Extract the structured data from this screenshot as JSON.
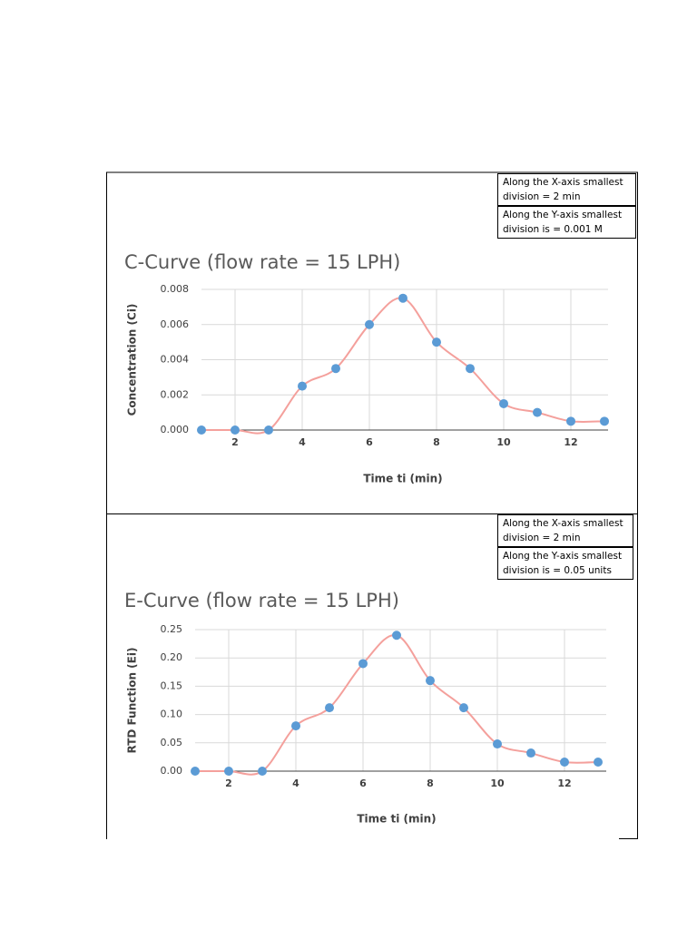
{
  "chart_data": [
    {
      "type": "scatter",
      "title": "C-Curve (flow rate = 15 LPH)",
      "x_label": "Time ti (min)",
      "y_label": "Concentration (Ci)",
      "annotations": [
        "Along the X-axis smallest division = 2 min",
        "Along the Y-axis smallest division is =  0.001 M"
      ],
      "x": [
        1,
        2,
        3,
        4,
        5,
        6,
        7,
        8,
        9,
        10,
        11,
        12,
        13
      ],
      "values": [
        0,
        0,
        0,
        0.0025,
        0.0035,
        0.006,
        0.0075,
        0.005,
        0.0035,
        0.0015,
        0.001,
        0.0005,
        0.0005
      ],
      "color": "#5b9bd5",
      "trendline_color": "#f4a09c",
      "grid": true,
      "xlim": [
        1,
        13
      ],
      "xticks": [
        2,
        4,
        6,
        8,
        10,
        12
      ],
      "ylim": [
        0,
        0.008
      ],
      "yticks": [
        {
          "value": 0,
          "label": "0.000"
        },
        {
          "value": 0.002,
          "label": "0.002"
        },
        {
          "value": 0.004,
          "label": "0.004"
        },
        {
          "value": 0.006,
          "label": "0.006"
        },
        {
          "value": 0.008,
          "label": "0.008"
        }
      ]
    },
    {
      "type": "scatter",
      "title": "E-Curve (flow rate = 15 LPH)",
      "x_label": "Time ti (min)",
      "y_label": "RTD Function (Ei)",
      "annotations": [
        "Along the X-axis smallest division = 2 min",
        "Along the Y-axis smallest division is =  0.05 units"
      ],
      "x": [
        1,
        2,
        3,
        4,
        5,
        6,
        7,
        8,
        9,
        10,
        11,
        12,
        13
      ],
      "values": [
        0,
        0,
        0,
        0.08,
        0.112,
        0.19,
        0.24,
        0.16,
        0.112,
        0.048,
        0.032,
        0.016,
        0.016
      ],
      "color": "#5b9bd5",
      "trendline_color": "#f4a09c",
      "grid": true,
      "xlim": [
        1,
        13
      ],
      "xticks": [
        2,
        4,
        6,
        8,
        10,
        12
      ],
      "ylim": [
        0,
        0.25
      ],
      "yticks": [
        {
          "value": 0,
          "label": "0.00"
        },
        {
          "value": 0.05,
          "label": "0.05"
        },
        {
          "value": 0.1,
          "label": "0.10"
        },
        {
          "value": 0.15,
          "label": "0.15"
        },
        {
          "value": 0.2,
          "label": "0.20"
        },
        {
          "value": 0.25,
          "label": "0.25"
        }
      ]
    }
  ]
}
